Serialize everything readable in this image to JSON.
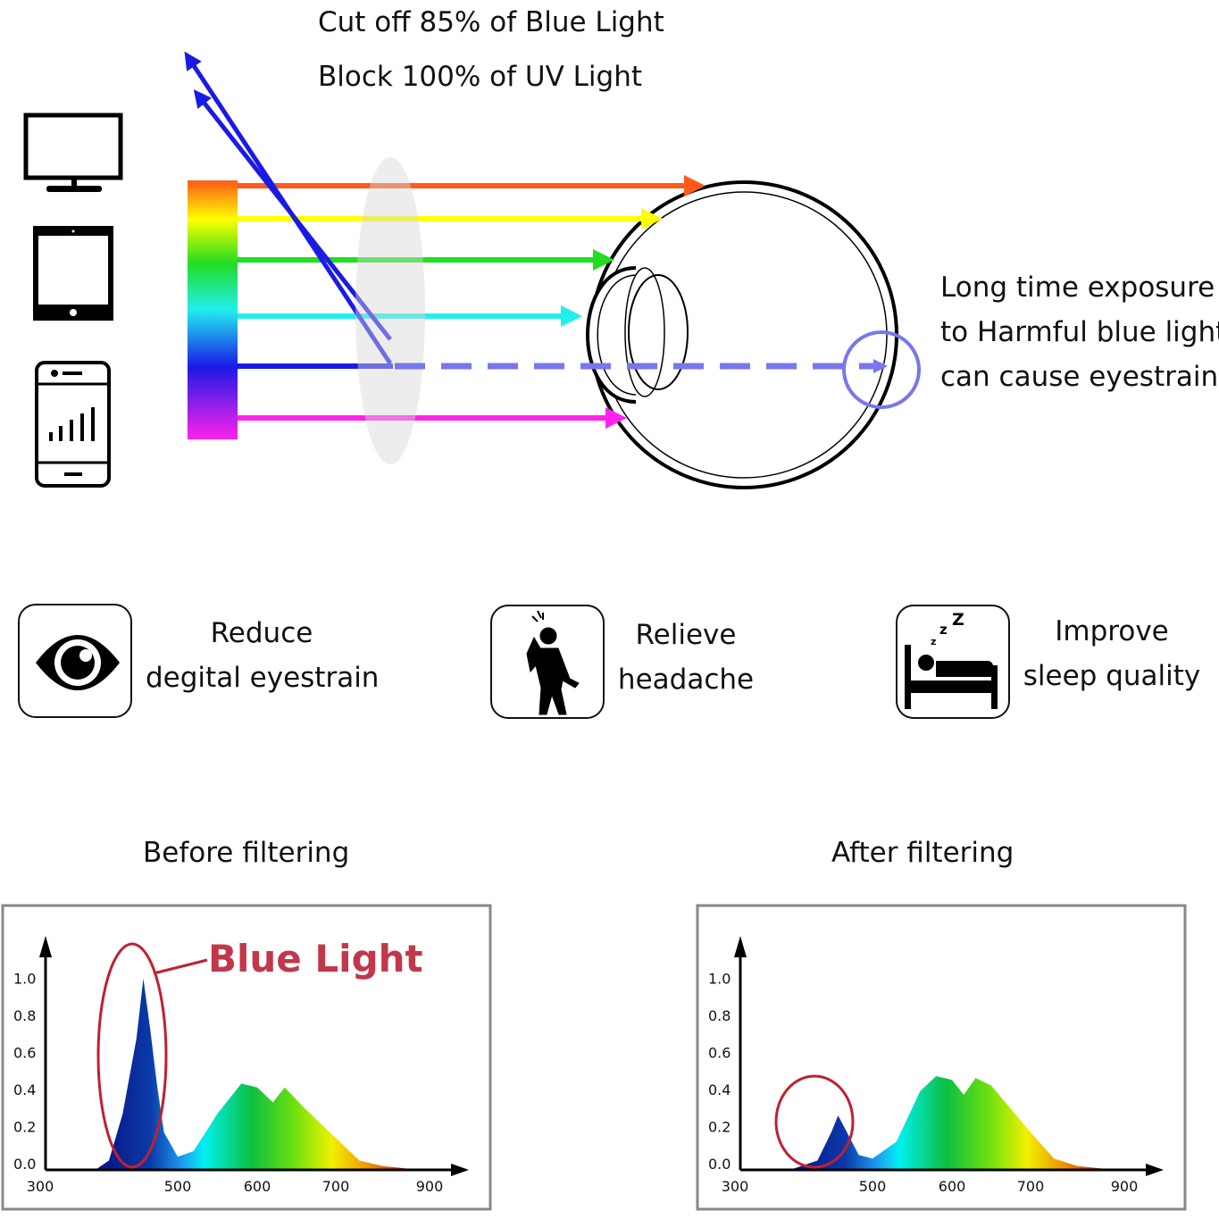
{
  "headline": {
    "line1": "Cut off 85% of Blue Light",
    "line2": "Block 100% of UV Light"
  },
  "devices": [
    "monitor-icon",
    "tablet-icon",
    "smartphone-icon"
  ],
  "eye_note": {
    "line1": "Long time exposure",
    "line2": "to Harmful blue light",
    "line3": "can cause eyestrain"
  },
  "ray_colors": [
    "#ff5a1a",
    "#ffff00",
    "#22dd22",
    "#22eeee",
    "#1a1ae6",
    "#ff22ee"
  ],
  "benefits": [
    {
      "icon": "eye-icon",
      "line1": "Reduce",
      "line2": "degital eyestrain"
    },
    {
      "icon": "headache-person-icon",
      "line1": "Relieve",
      "line2": "headache"
    },
    {
      "icon": "sleeping-bed-icon",
      "line1": "Improve",
      "line2": "sleep quality"
    }
  ],
  "chart_data": [
    {
      "type": "area",
      "title": "Before filtering",
      "annotation": "Blue Light",
      "x_ticks": [
        300,
        500,
        600,
        700,
        900
      ],
      "y_ticks": [
        "0.0",
        "0.2",
        "0.4",
        "0.6",
        "0.8",
        "1.0"
      ],
      "ylim": [
        0,
        1.0
      ],
      "x": [
        380,
        400,
        420,
        440,
        450,
        460,
        470,
        480,
        500,
        520,
        550,
        580,
        600,
        620,
        635,
        660,
        700,
        750,
        800,
        880
      ],
      "y": [
        0,
        0.05,
        0.3,
        0.7,
        1.02,
        0.75,
        0.45,
        0.2,
        0.07,
        0.1,
        0.3,
        0.46,
        0.44,
        0.36,
        0.44,
        0.33,
        0.17,
        0.05,
        0.02,
        0
      ]
    },
    {
      "type": "area",
      "title": "After filtering",
      "x_ticks": [
        300,
        500,
        600,
        700,
        900
      ],
      "y_ticks": [
        "0.0",
        "0.2",
        "0.4",
        "0.6",
        "0.8",
        "1.0"
      ],
      "ylim": [
        0,
        1.0
      ],
      "x": [
        380,
        420,
        440,
        450,
        460,
        480,
        500,
        530,
        560,
        580,
        600,
        615,
        630,
        650,
        700,
        750,
        800,
        880
      ],
      "y": [
        0,
        0.05,
        0.2,
        0.29,
        0.22,
        0.08,
        0.06,
        0.15,
        0.42,
        0.5,
        0.48,
        0.4,
        0.49,
        0.45,
        0.2,
        0.06,
        0.02,
        0
      ]
    }
  ]
}
